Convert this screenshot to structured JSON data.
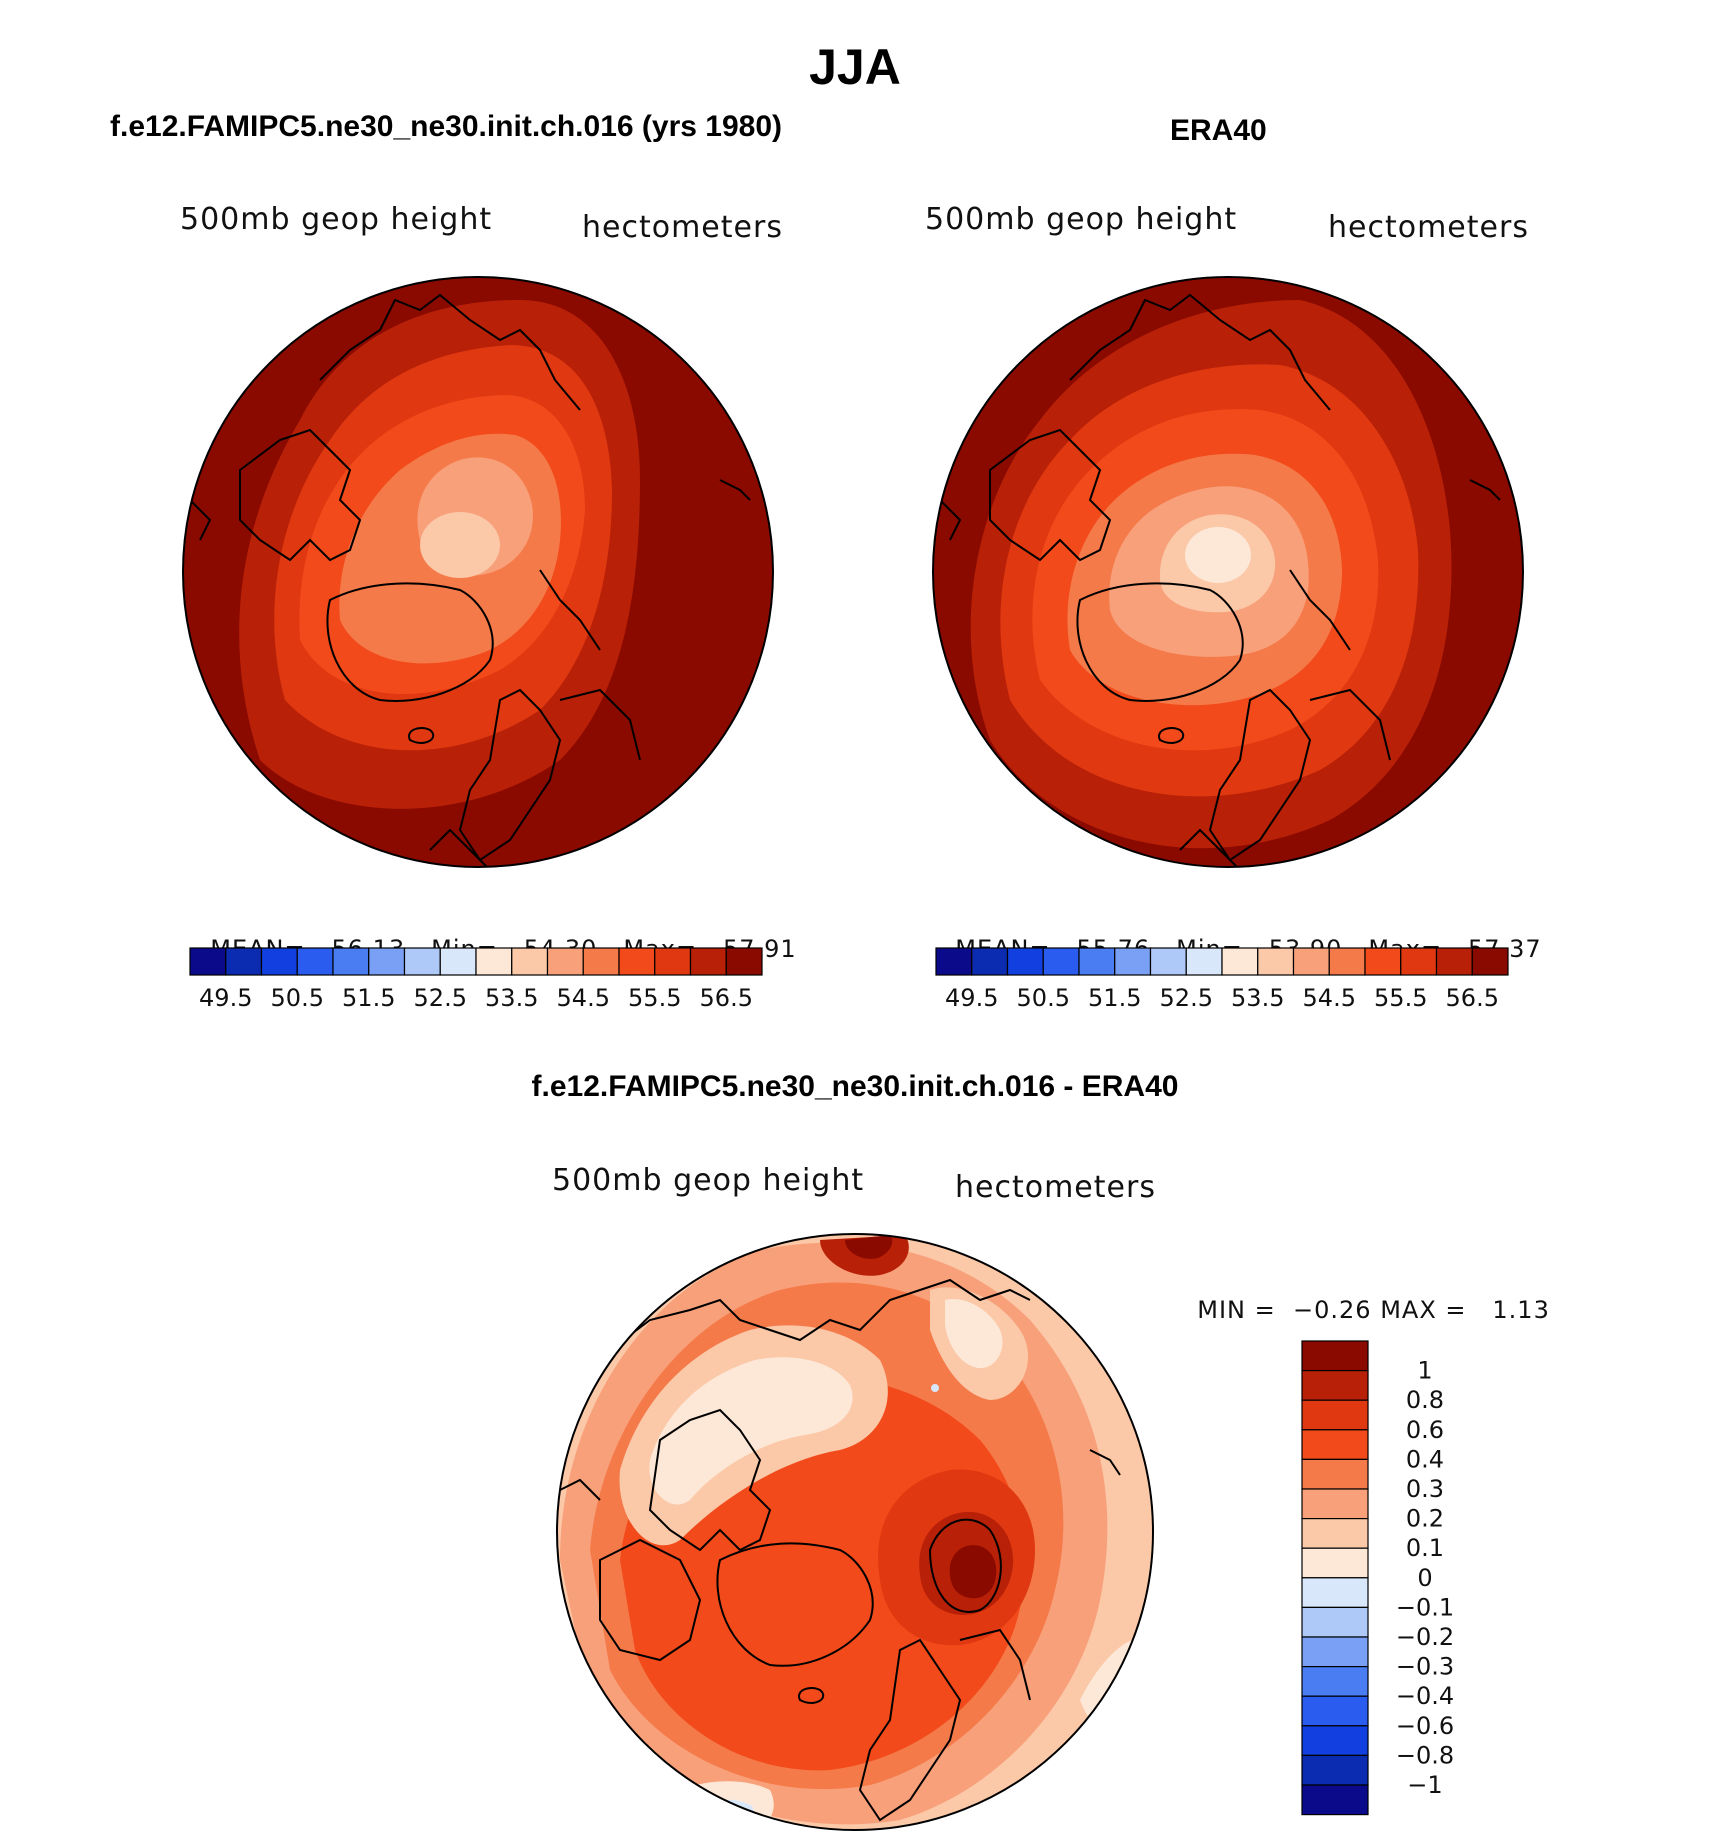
{
  "figure": {
    "season": "JJA",
    "diff_title": "f.e12.FAMIPC5.ne30_ne30.init.ch.016 - ERA40",
    "diff_range": {
      "min_label": "MIN =",
      "min_value": "−0.26",
      "max_label": "MAX =",
      "max_value": "1.13"
    }
  },
  "panels": [
    {
      "title": "f.e12.FAMIPC5.ne30_ne30.init.ch.016 (yrs 1980)",
      "variable": "500mb geop height",
      "units": "hectometers",
      "mean_label": "MEAN=",
      "mean_value": "56.13",
      "min_label": "Min=",
      "min_value": "54.30",
      "max_label": "Max=",
      "max_value": "57.91"
    },
    {
      "title": "ERA40",
      "variable": "500mb geop height",
      "units": "hectometers",
      "mean_label": "MEAN=",
      "mean_value": "55.76",
      "min_label": "Min=",
      "min_value": "53.90",
      "max_label": "Max=",
      "max_value": "57.37"
    },
    {
      "variable": "500mb geop height",
      "units": "hectometers"
    }
  ],
  "colorbar_horizontal": {
    "colors": [
      "#0a0a8a",
      "#0b2bb0",
      "#1240e0",
      "#2a5cf0",
      "#4a7cf2",
      "#7aa0f5",
      "#aec8f7",
      "#d8e8fa",
      "#fde8d8",
      "#fbc8a8",
      "#f8a07a",
      "#f57a4a",
      "#f24a1a",
      "#e03810",
      "#b82008",
      "#8a0a00"
    ],
    "labels": [
      "49.5",
      "50.5",
      "51.5",
      "52.5",
      "53.5",
      "54.5",
      "55.5",
      "56.5"
    ]
  },
  "colorbar_vertical": {
    "colors": [
      "#8a0a00",
      "#b82008",
      "#e03810",
      "#f24a1a",
      "#f57a4a",
      "#f8a07a",
      "#fbc8a8",
      "#fde8d8",
      "#d8e8fa",
      "#aec8f7",
      "#7aa0f5",
      "#4a7cf2",
      "#2a5cf0",
      "#1240e0",
      "#0b2bb0",
      "#0a0a8a"
    ],
    "labels": [
      "1",
      "0.8",
      "0.6",
      "0.4",
      "0.3",
      "0.2",
      "0.1",
      "0",
      "−0.1",
      "−0.2",
      "−0.3",
      "−0.4",
      "−0.6",
      "−0.8",
      "−1"
    ]
  }
}
